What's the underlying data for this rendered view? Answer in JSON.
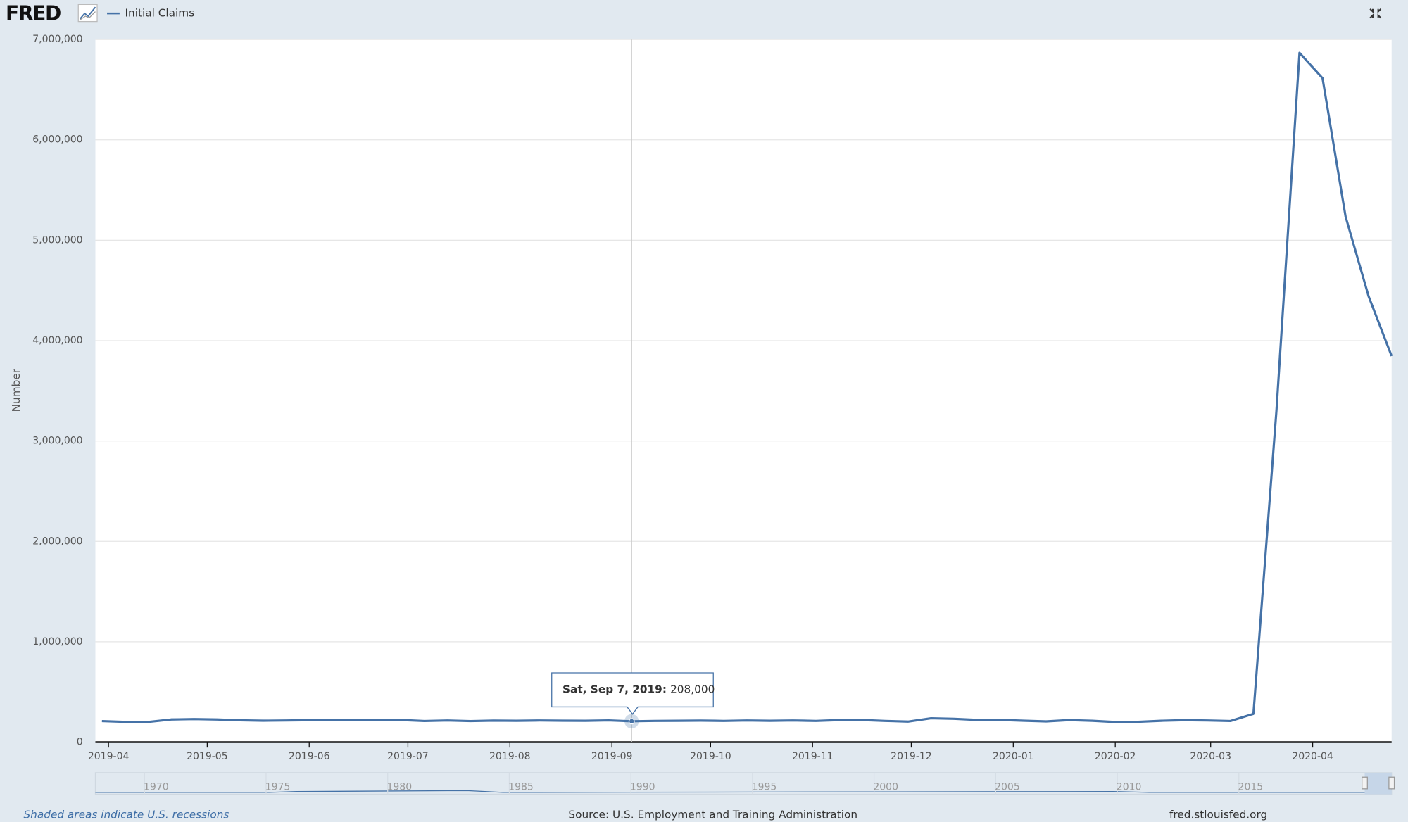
{
  "header": {
    "logo": "FRED"
  },
  "chart_data": {
    "type": "line",
    "y_label": "Number",
    "x": [
      "2019-03-30",
      "2019-04-06",
      "2019-04-13",
      "2019-04-20",
      "2019-04-27",
      "2019-05-04",
      "2019-05-11",
      "2019-05-18",
      "2019-05-25",
      "2019-06-01",
      "2019-06-08",
      "2019-06-15",
      "2019-06-22",
      "2019-06-29",
      "2019-07-06",
      "2019-07-13",
      "2019-07-20",
      "2019-07-27",
      "2019-08-03",
      "2019-08-10",
      "2019-08-17",
      "2019-08-24",
      "2019-08-31",
      "2019-09-07",
      "2019-09-14",
      "2019-09-21",
      "2019-09-28",
      "2019-10-05",
      "2019-10-12",
      "2019-10-19",
      "2019-10-26",
      "2019-11-02",
      "2019-11-09",
      "2019-11-16",
      "2019-11-23",
      "2019-11-30",
      "2019-12-07",
      "2019-12-14",
      "2019-12-21",
      "2019-12-28",
      "2020-01-04",
      "2020-01-11",
      "2020-01-18",
      "2020-01-25",
      "2020-02-01",
      "2020-02-08",
      "2020-02-15",
      "2020-02-22",
      "2020-02-29",
      "2020-03-07",
      "2020-03-14",
      "2020-03-21",
      "2020-03-28",
      "2020-04-04",
      "2020-04-11",
      "2020-04-18",
      "2020-04-25"
    ],
    "series": [
      {
        "name": "Initial Claims",
        "color": "#4572a7",
        "values": [
          210000,
          202000,
          201000,
          226000,
          230000,
          226000,
          218000,
          214000,
          216000,
          219000,
          220000,
          219000,
          222000,
          221000,
          211000,
          216000,
          210000,
          215000,
          213000,
          216000,
          214000,
          213000,
          217000,
          208000,
          212000,
          213000,
          215000,
          212000,
          216000,
          213000,
          216000,
          212000,
          220000,
          221000,
          212000,
          205000,
          238000,
          233000,
          222000,
          222000,
          214000,
          207000,
          220000,
          213000,
          201000,
          203000,
          213000,
          219000,
          216000,
          211000,
          282000,
          3307000,
          6867000,
          6615000,
          5237000,
          4442000,
          3846000
        ]
      }
    ],
    "xlim": [
      "2019-03-28",
      "2020-04-25"
    ],
    "xticks": [
      "2019-04",
      "2019-05",
      "2019-06",
      "2019-07",
      "2019-08",
      "2019-09",
      "2019-10",
      "2019-11",
      "2019-12",
      "2020-01",
      "2020-02",
      "2020-03",
      "2020-04"
    ],
    "ylim": [
      0,
      7000000
    ],
    "yticks": [
      0,
      {
        "value": 1000000,
        "label": "1,000,000"
      },
      {
        "value": 2000000,
        "label": "2,000,000"
      },
      {
        "value": 3000000,
        "label": "3,000,000"
      },
      {
        "value": 4000000,
        "label": "4,000,000"
      },
      {
        "value": 5000000,
        "label": "5,000,000"
      },
      {
        "value": 6000000,
        "label": "6,000,000"
      },
      {
        "value": 7000000,
        "label": "7,000,000"
      }
    ],
    "grid": true,
    "tooltip": {
      "x": "2019-09-07",
      "label": "Sat, Sep 7, 2019:",
      "value": 208000,
      "value_label": "208,000"
    },
    "navigator_ticks": [
      1970,
      1975,
      1980,
      1985,
      1990,
      1995,
      2000,
      2005,
      2010,
      2015
    ]
  },
  "footer": {
    "note": "Shaded areas indicate U.S. recessions",
    "source": "Source: U.S. Employment and Training Administration",
    "site": "fred.stlouisfed.org"
  }
}
